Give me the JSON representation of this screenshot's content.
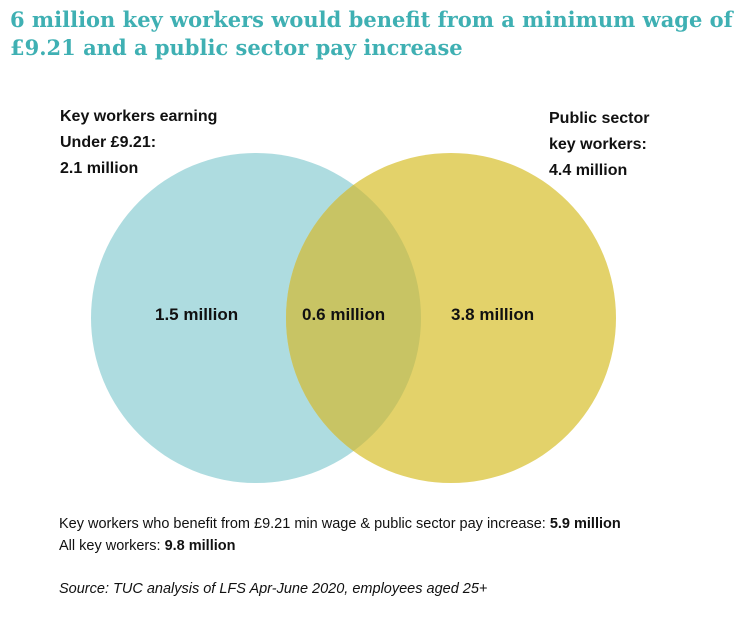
{
  "title": "6 million key workers would benefit from a minimum wage of £9.21 and a public sector pay increase",
  "sets": {
    "left": {
      "label_lines": [
        "Key workers earning",
        "Under £9.21:",
        "2.1 million"
      ],
      "color": "#aedce0"
    },
    "right": {
      "label_lines": [
        "Public sector",
        "key workers:",
        "4.4 million"
      ],
      "color": "#e3d26a"
    },
    "overlap_color": "#c8c464"
  },
  "regions": {
    "left_only": "1.5 million",
    "overlap": "0.6 million",
    "right_only": "3.8 million"
  },
  "footnotes": {
    "line1_text": "Key workers who benefit from £9.21 min wage & public sector pay increase: ",
    "line1_value": "5.9 million",
    "line2_text": "All key workers: ",
    "line2_value": "9.8 million"
  },
  "source": "Source: TUC analysis of LFS Apr-June 2020, employees aged 25+"
}
